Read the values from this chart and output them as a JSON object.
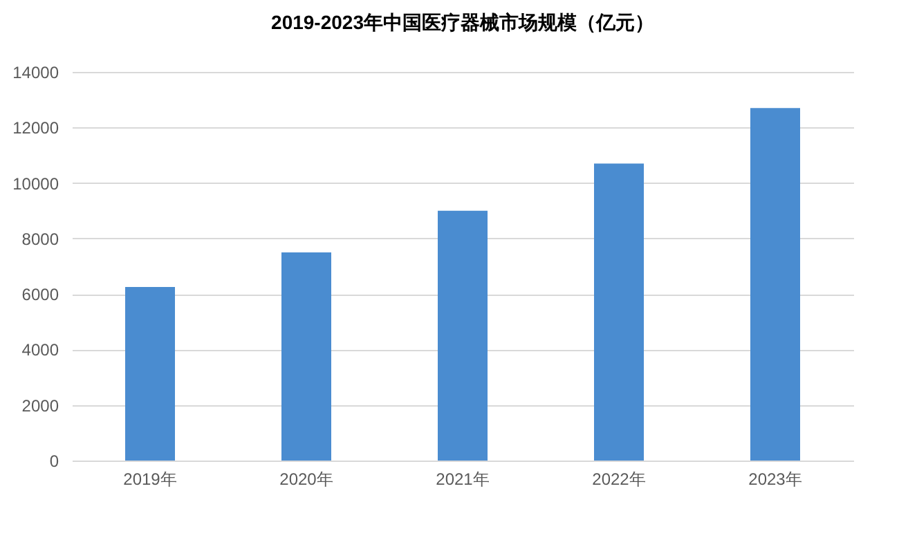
{
  "chart_data": {
    "type": "bar",
    "title": "2019-2023年中国医疗器械市场规模（亿元）",
    "categories": [
      "2019年",
      "2020年",
      "2021年",
      "2022年",
      "2023年"
    ],
    "values": [
      6250,
      7500,
      9000,
      10700,
      12700
    ],
    "color": "#4a8cd0",
    "ylim": [
      0,
      14000
    ],
    "yticks": [
      0,
      2000,
      4000,
      6000,
      8000,
      10000,
      12000,
      14000
    ],
    "grid": "y"
  }
}
